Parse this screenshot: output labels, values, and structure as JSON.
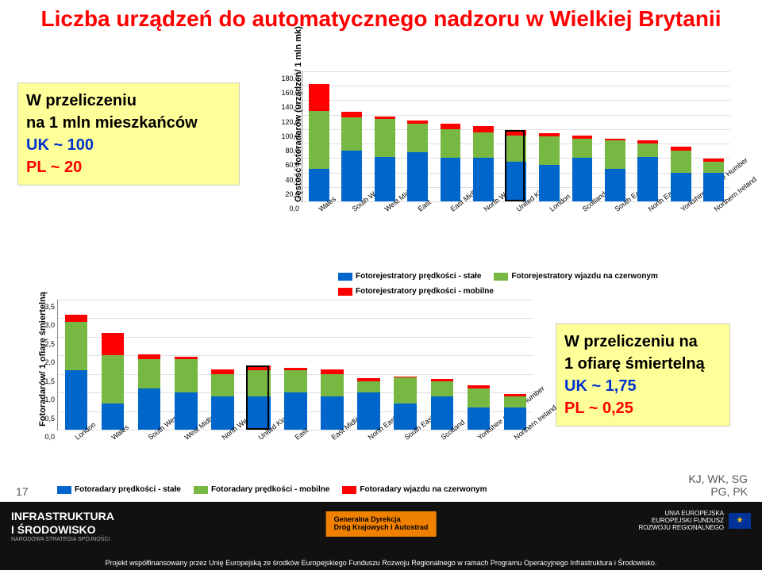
{
  "title": "Liczba urządzeń do automatycznego nadzoru w Wielkiej Brytanii",
  "note_left": {
    "line1": "W przeliczeniu",
    "line2": "na 1 mln mieszkańców",
    "line3": "UK  ~ 100",
    "line4": "PL   ~  20"
  },
  "note_right": {
    "line1": "W przeliczeniu na",
    "line2": "1 ofiarę śmiertelną",
    "line3": "UK ~  1,75",
    "line4": "PL ~  0,25"
  },
  "attribution": {
    "l1": "KJ, WK, SG",
    "l2": "PG, PK"
  },
  "page_number": "17",
  "colors": {
    "seg1": "#0066cc",
    "seg2": "#77b843",
    "seg3": "#ff0000",
    "grid": "#e0e0e0",
    "bg": "#ffffff"
  },
  "chart_top": {
    "ylabel": "Gęstość fotoradarów (urządzeń/ 1 mln mk)",
    "ymax": 180,
    "ytick_step": 20,
    "bar_width": 0.62,
    "highlight_index": 6,
    "categories": [
      "Wales",
      "South West",
      "West Midlands",
      "East",
      "East Midlands",
      "North West",
      "United Kingdom",
      "London",
      "Scotland",
      "South East",
      "North East",
      "Yorkshire and the Humber",
      "Northern Ireland"
    ],
    "series": [
      {
        "name": "Fotorejestratory prędkości - stałe",
        "color": "#0066cc",
        "values": [
          45,
          70,
          62,
          68,
          60,
          60,
          55,
          50,
          60,
          45,
          62,
          40,
          40
        ]
      },
      {
        "name": "Fotorejestratory wjazdu na czerwonym",
        "color": "#77b843",
        "values": [
          80,
          46,
          52,
          40,
          40,
          36,
          36,
          40,
          27,
          40,
          18,
          30,
          15
        ]
      },
      {
        "name": "Fotorejestratory prędkości - mobilne",
        "color": "#ff0000",
        "values": [
          38,
          8,
          4,
          4,
          8,
          8,
          8,
          4,
          4,
          2,
          5,
          6,
          4
        ]
      }
    ]
  },
  "chart_bottom": {
    "ylabel": "Fotoradarów/ 1 ofiarę śmiertelną",
    "ymax": 3.5,
    "ytick_step": 0.5,
    "bar_width": 0.62,
    "highlight_index": 5,
    "categories": [
      "London",
      "Wales",
      "South West",
      "West Midlands",
      "North West",
      "United Kingdom",
      "East",
      "East Midlands",
      "North East",
      "South East",
      "Scotland",
      "Yorkshire and the Humber",
      "Northern Ireland"
    ],
    "series": [
      {
        "name": "Fotoradary prędkości - stałe",
        "color": "#0066cc",
        "values": [
          1.6,
          0.7,
          1.1,
          1.0,
          0.9,
          0.9,
          1.0,
          0.9,
          1.0,
          0.7,
          0.9,
          0.6,
          0.6
        ]
      },
      {
        "name": "Fotoradary prędkości - mobilne",
        "color": "#77b843",
        "values": [
          1.3,
          1.3,
          0.8,
          0.9,
          0.6,
          0.7,
          0.6,
          0.6,
          0.3,
          0.7,
          0.4,
          0.5,
          0.3
        ]
      },
      {
        "name": "Fotoradary wjazdu na czerwonym",
        "color": "#ff0000",
        "values": [
          0.2,
          0.6,
          0.12,
          0.07,
          0.12,
          0.13,
          0.06,
          0.12,
          0.08,
          0.03,
          0.06,
          0.09,
          0.06
        ]
      }
    ]
  },
  "footer": {
    "mid1": "Generalna Dyrekcja",
    "mid2": "Dróg Krajowych i Autostrad",
    "left1": "INFRASTRUKTURA",
    "left2": "I ŚRODOWISKO",
    "left3": "NARODOWA STRATEGIA SPÓJNOŚCI",
    "right1": "UNIA EUROPEJSKA",
    "right2": "EUROPEJSKI FUNDUSZ",
    "right3": "ROZWOJU REGIONALNEGO",
    "bottom": "Projekt współfinansowany przez Unię Europejską ze środków Europejskiego Funduszu Rozwoju Regionalnego w ramach Programu Operacyjnego Infrastruktura i Środowisko."
  }
}
